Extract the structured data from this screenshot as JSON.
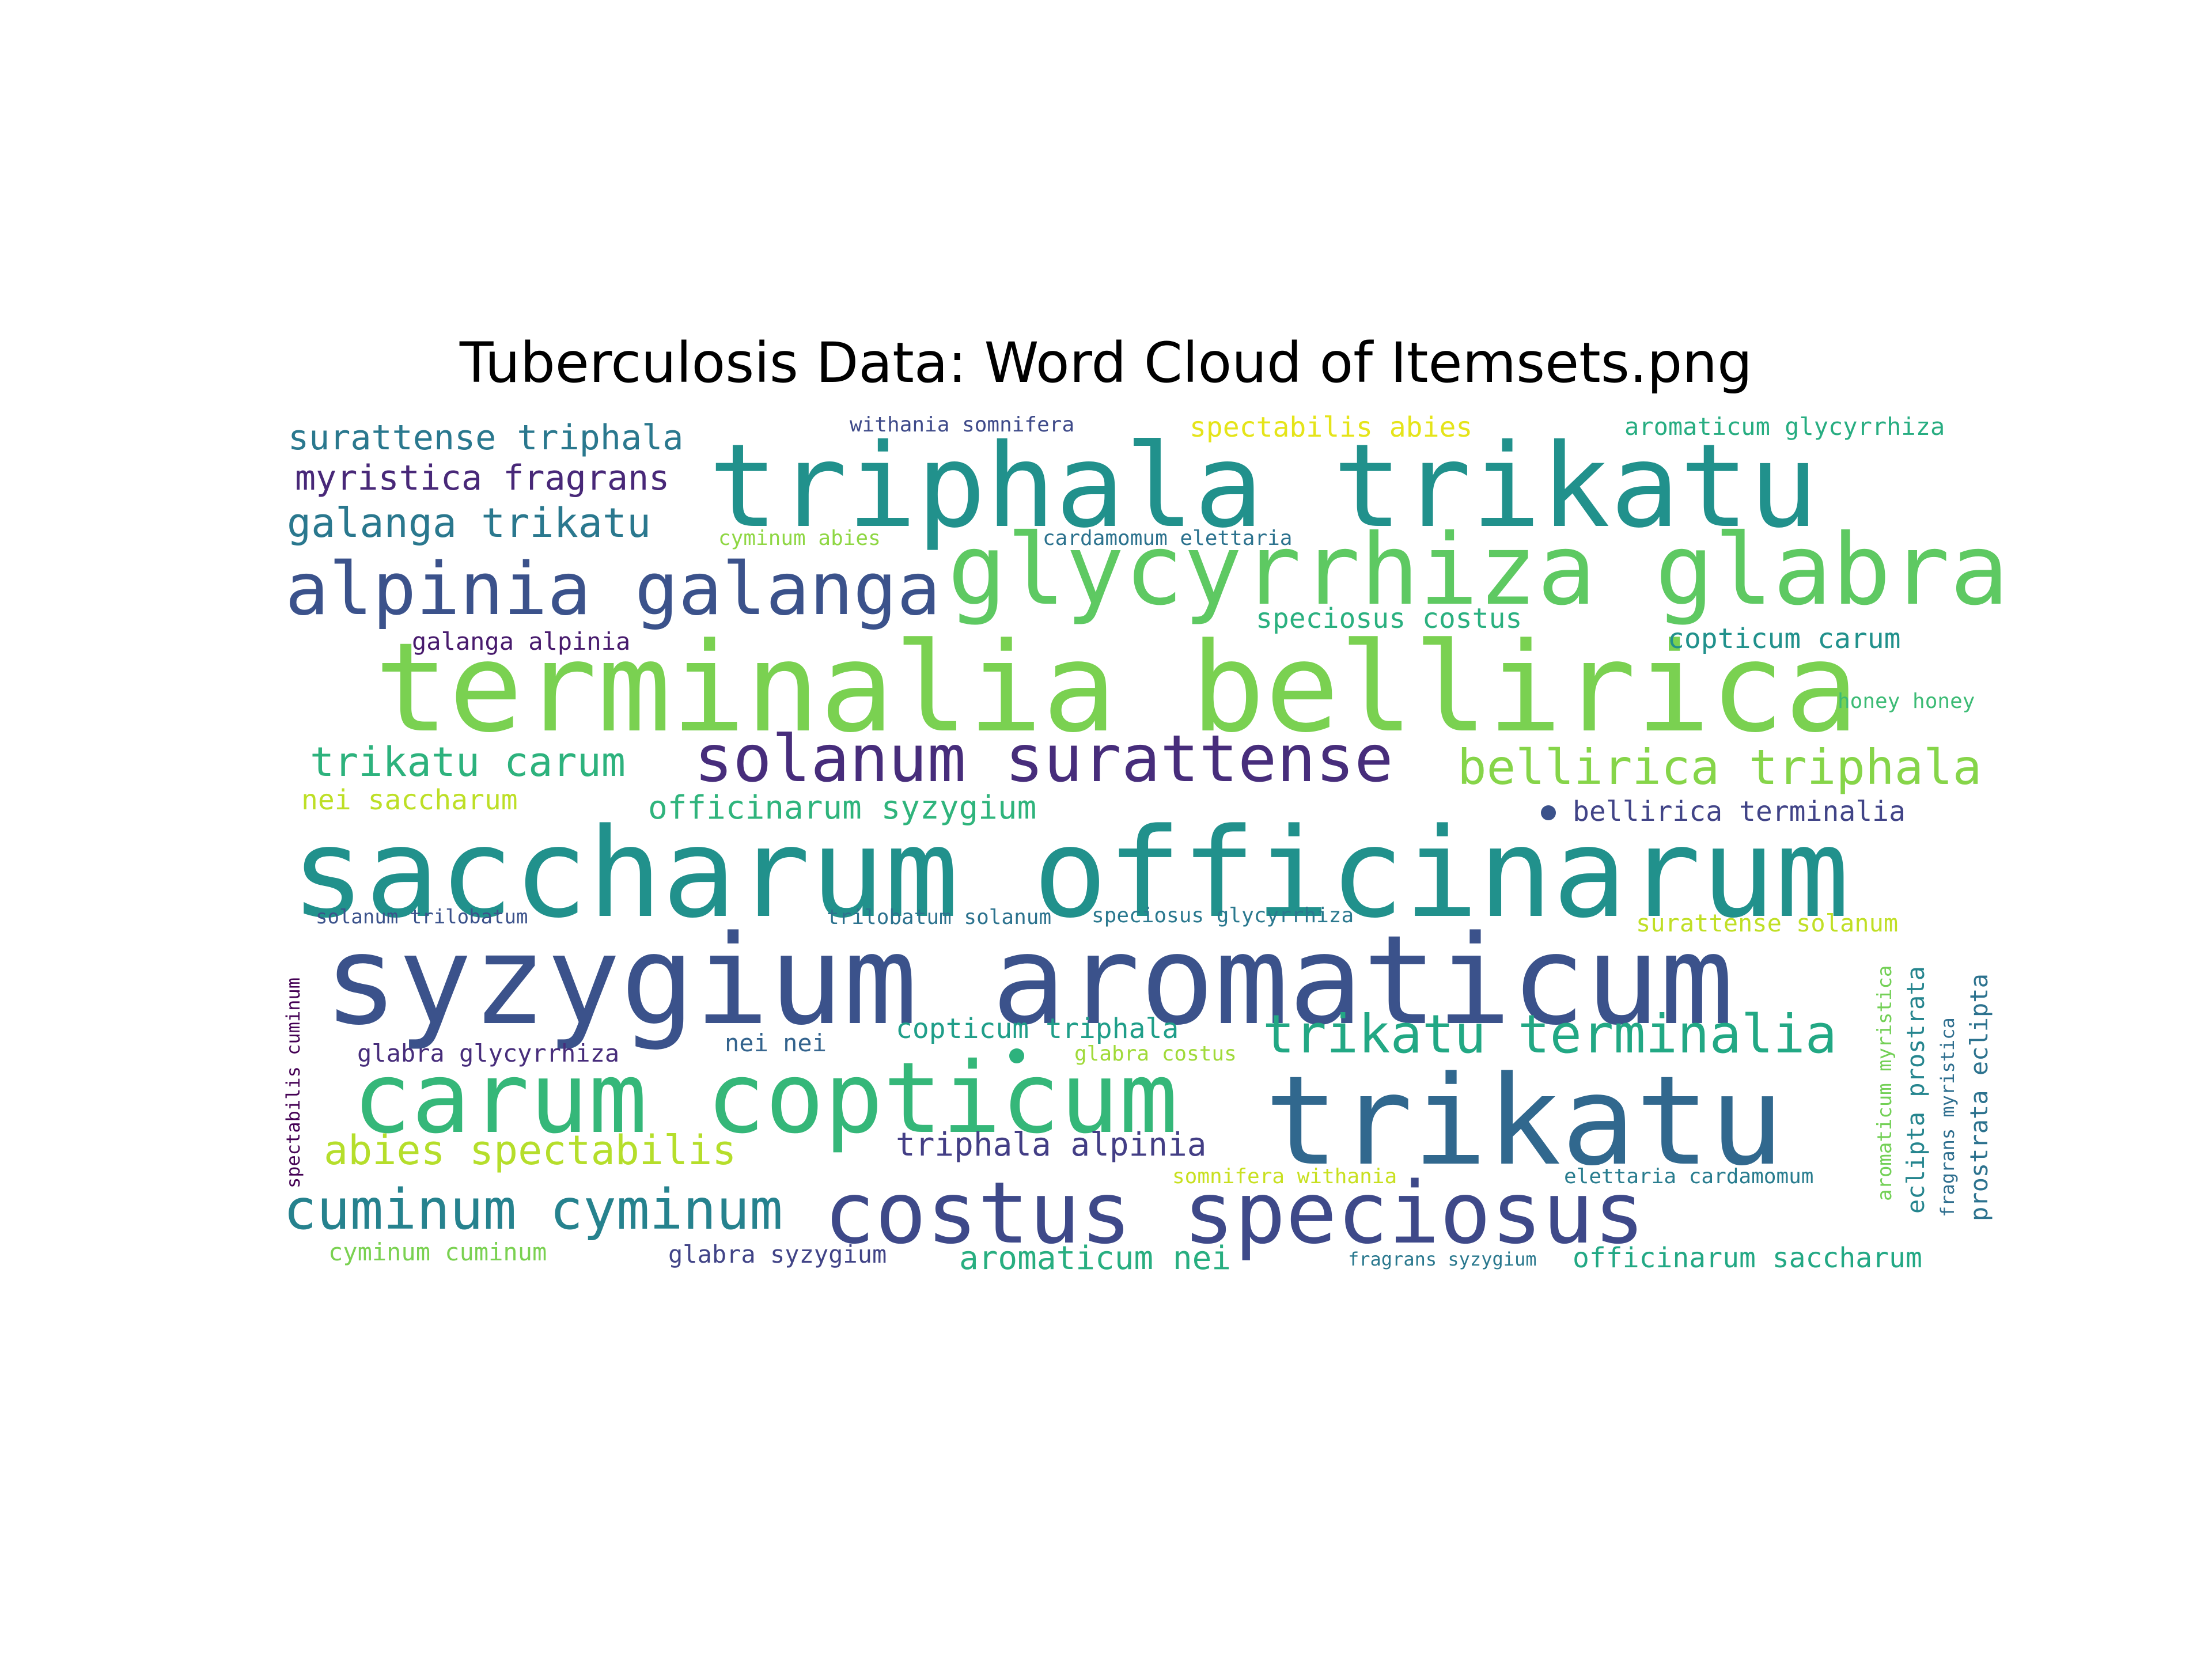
{
  "title": "Tuberculosis Data: Word Cloud of Itemsets.png",
  "words": [
    {
      "text": "triphala trikatu",
      "color": "#21918c"
    },
    {
      "text": "glycyrrhiza glabra",
      "color": "#5ec962"
    },
    {
      "text": "alpinia galanga",
      "color": "#3b528b"
    },
    {
      "text": "terminalia bellirica",
      "color": "#7ad151"
    },
    {
      "text": "solanum surattense",
      "color": "#472d7b"
    },
    {
      "text": "bellirica triphala",
      "color": "#86d549"
    },
    {
      "text": "saccharum officinarum",
      "color": "#21918c"
    },
    {
      "text": "syzygium aromaticum",
      "color": "#3b528b"
    },
    {
      "text": "carum copticum",
      "color": "#35b779"
    },
    {
      "text": "trikatu",
      "color": "#31688e"
    },
    {
      "text": "costus speciosus",
      "color": "#3e4989"
    },
    {
      "text": "trikatu terminalia",
      "color": "#22a884"
    },
    {
      "text": "cuminum cyminum",
      "color": "#26828e"
    },
    {
      "text": "surattense triphala",
      "color": "#2a788e"
    },
    {
      "text": "myristica fragrans",
      "color": "#482878"
    },
    {
      "text": "galanga trikatu",
      "color": "#2a788e"
    },
    {
      "text": "trikatu carum",
      "color": "#2db27d"
    },
    {
      "text": "nei saccharum",
      "color": "#bddf26"
    },
    {
      "text": "officinarum syzygium",
      "color": "#2fb47c"
    },
    {
      "text": "abies spectabilis",
      "color": "#b5de2b"
    },
    {
      "text": "triphala alpinia",
      "color": "#433e85"
    },
    {
      "text": "aromaticum nei",
      "color": "#28ae80"
    },
    {
      "text": "copticum triphala",
      "color": "#1f9e89"
    },
    {
      "text": "speciosus costus",
      "color": "#2ab07f"
    },
    {
      "text": "copticum carum",
      "color": "#21918c"
    },
    {
      "text": "bellirica terminalia",
      "color": "#414487"
    },
    {
      "text": "surattense solanum",
      "color": "#c0df25"
    },
    {
      "text": "officinarum saccharum",
      "color": "#22a884"
    },
    {
      "text": "withania somnifera",
      "color": "#3e4a89"
    },
    {
      "text": "spectabilis abies",
      "color": "#e5e419"
    },
    {
      "text": "aromaticum glycyrrhiza",
      "color": "#27ad81"
    },
    {
      "text": "cyminum abies",
      "color": "#8fd744"
    },
    {
      "text": "cardamomum elettaria",
      "color": "#2c728e"
    },
    {
      "text": "galanga alpinia",
      "color": "#481b6d"
    },
    {
      "text": "honey honey",
      "color": "#3cbb75"
    },
    {
      "text": "trilobatum solanum",
      "color": "#2c728e"
    },
    {
      "text": "speciosus glycyrrhiza",
      "color": "#2a788e"
    },
    {
      "text": "solanum trilobatum",
      "color": "#3b528b"
    },
    {
      "text": "glabra glycyrrhiza",
      "color": "#472d7b"
    },
    {
      "text": "nei nei",
      "color": "#33638d"
    },
    {
      "text": "glabra costus",
      "color": "#a0da39"
    },
    {
      "text": "somnifera withania",
      "color": "#c8e020"
    },
    {
      "text": "elettaria cardamomum",
      "color": "#287c8e"
    },
    {
      "text": "cyminum cuminum",
      "color": "#7ad151"
    },
    {
      "text": "glabra syzygium",
      "color": "#414487"
    },
    {
      "text": "fragrans syzygium",
      "color": "#2a788e"
    },
    {
      "text": "spectabilis cuminum",
      "color": "#440154"
    },
    {
      "text": "aromaticum myristica",
      "color": "#73d056"
    },
    {
      "text": "eclipta prostrata",
      "color": "#25858e"
    },
    {
      "text": "fragrans myristica",
      "color": "#2e6e8e"
    },
    {
      "text": "prostrata eclipta",
      "color": "#2c728e"
    }
  ],
  "dots": [
    {
      "color": "#3b528b"
    },
    {
      "color": "#2db27d"
    }
  ]
}
